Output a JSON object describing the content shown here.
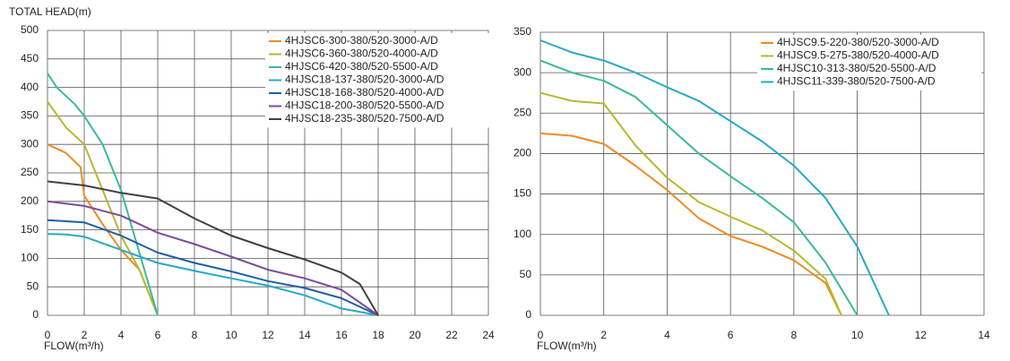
{
  "chart_data": [
    {
      "type": "line",
      "y_label": "TOTAL HEAD(m)",
      "x_label": "FLOW(m³/h)",
      "xlim": [
        0,
        24
      ],
      "ylim": [
        0,
        500
      ],
      "xticks": [
        0,
        2,
        4,
        6,
        8,
        10,
        12,
        14,
        16,
        18,
        20,
        22,
        24
      ],
      "yticks": [
        0,
        50,
        100,
        150,
        200,
        250,
        300,
        350,
        400,
        450,
        500
      ],
      "grid": true,
      "legend": "upper right",
      "series": [
        {
          "name": "4HJSC6-300-380/520-3000-A/D",
          "color": "#f08a24",
          "x": [
            0,
            1,
            1.8,
            2,
            3,
            4,
            5,
            6
          ],
          "values": [
            300,
            285,
            260,
            210,
            160,
            115,
            80,
            0
          ]
        },
        {
          "name": "4HJSC6-360-380/520-4000-A/D",
          "color": "#b5b832",
          "x": [
            0,
            1,
            2,
            3,
            4,
            5,
            6
          ],
          "values": [
            375,
            330,
            300,
            220,
            140,
            80,
            0
          ]
        },
        {
          "name": "4HJSC6-420-380/520-5500-A/D",
          "color": "#3cb99a",
          "x": [
            0,
            0.5,
            1.5,
            2,
            3,
            4,
            5,
            6
          ],
          "values": [
            425,
            400,
            370,
            350,
            300,
            220,
            110,
            0
          ]
        },
        {
          "name": "4HJSC18-137-380/520-3000-A/D",
          "color": "#26a9c6",
          "x": [
            0,
            1,
            2,
            4,
            6,
            8,
            10,
            12,
            14,
            16,
            18
          ],
          "values": [
            143,
            142,
            138,
            115,
            92,
            78,
            65,
            52,
            35,
            12,
            0
          ]
        },
        {
          "name": "4HJSC18-168-380/520-4000-A/D",
          "color": "#1f5fa8",
          "x": [
            0,
            2,
            4,
            6,
            8,
            10,
            12,
            14,
            16,
            18
          ],
          "values": [
            167,
            163,
            140,
            110,
            92,
            77,
            60,
            48,
            30,
            0
          ]
        },
        {
          "name": "4HJSC18-200-380/520-5500-A/D",
          "color": "#7b4a9c",
          "x": [
            0,
            2,
            4,
            6,
            8,
            10,
            12,
            14,
            16,
            18
          ],
          "values": [
            200,
            192,
            175,
            145,
            125,
            103,
            80,
            65,
            45,
            0
          ]
        },
        {
          "name": "4HJSC18-235-380/520-7500-A/D",
          "color": "#404040",
          "x": [
            0,
            2,
            4,
            6,
            8,
            10,
            12,
            14,
            16,
            17,
            18
          ],
          "values": [
            235,
            228,
            215,
            205,
            170,
            140,
            118,
            98,
            75,
            55,
            0
          ]
        }
      ]
    },
    {
      "type": "line",
      "x_label": "FLOW(m³/h)",
      "xlim": [
        0,
        14
      ],
      "ylim": [
        0,
        350
      ],
      "xticks": [
        0,
        2,
        4,
        6,
        8,
        10,
        12,
        14
      ],
      "yticks": [
        0,
        50,
        100,
        150,
        200,
        250,
        300,
        350
      ],
      "grid": true,
      "legend": "upper right",
      "series": [
        {
          "name": "4HJSC9.5-220-380/520-3000-A/D",
          "color": "#f08a24",
          "x": [
            0,
            1,
            2,
            3,
            4,
            5,
            6,
            7,
            8,
            9,
            9.5
          ],
          "values": [
            225,
            222,
            212,
            185,
            155,
            120,
            98,
            85,
            68,
            40,
            0
          ]
        },
        {
          "name": "4HJSC9.5-275-380/520-4000-A/D",
          "color": "#b5b832",
          "x": [
            0,
            1,
            2,
            3,
            4,
            5,
            6,
            7,
            8,
            9,
            9.5
          ],
          "values": [
            275,
            265,
            262,
            210,
            170,
            140,
            122,
            105,
            80,
            45,
            0
          ]
        },
        {
          "name": "4HJSC10-313-380/520-5500-A/D",
          "color": "#3cb99a",
          "x": [
            0,
            1,
            2,
            3,
            4,
            5,
            6,
            7,
            8,
            9,
            10
          ],
          "values": [
            315,
            300,
            290,
            270,
            235,
            200,
            172,
            145,
            115,
            65,
            0
          ]
        },
        {
          "name": "4HJSC11-339-380/520-7500-A/D",
          "color": "#26a9c6",
          "x": [
            0,
            1,
            2,
            3,
            4,
            5,
            6,
            7,
            8,
            9,
            10,
            11
          ],
          "values": [
            340,
            325,
            315,
            300,
            282,
            265,
            240,
            215,
            185,
            145,
            85,
            0
          ]
        }
      ]
    }
  ]
}
